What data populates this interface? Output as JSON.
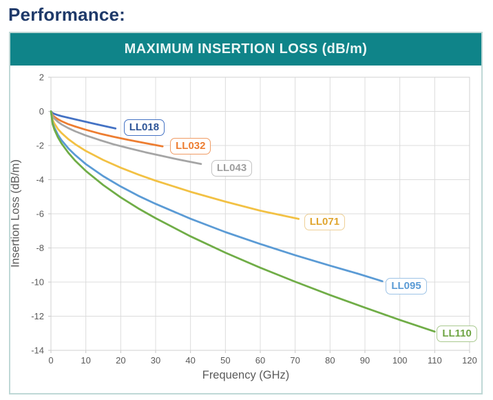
{
  "page": {
    "heading": "Performance:"
  },
  "colors": {
    "heading_text": "#1E3969",
    "header_bar_bg": "#0F8489",
    "header_bar_text": "#EAF6F5",
    "card_border": "#BFD8D6",
    "gridline": "#DCDCDC",
    "plot_border": "#D2D2D2",
    "tick_mark": "#C6C6C6",
    "axis_text": "#595959"
  },
  "chart_data": {
    "type": "line",
    "title": "MAXIMUM INSERTION LOSS (dB/m)",
    "xlabel": "Frequency (GHz)",
    "ylabel": "Insertion Loss (dB/m)",
    "xlim": [
      0,
      120
    ],
    "ylim": [
      -14,
      2
    ],
    "x_ticks": [
      0,
      10,
      20,
      30,
      40,
      50,
      60,
      70,
      80,
      90,
      100,
      110,
      120
    ],
    "y_ticks": [
      2,
      0,
      -2,
      -4,
      -6,
      -8,
      -10,
      -12,
      -14
    ],
    "grid": true,
    "legend_position": "inline-labels-at-line-ends",
    "series": [
      {
        "name": "LL018",
        "color": "#4472C4",
        "label_text_color": "#2E5597",
        "label_border_color": "#4472C4",
        "points": [
          [
            0,
            0
          ],
          [
            0.5,
            -0.1
          ],
          [
            1,
            -0.15
          ],
          [
            2,
            -0.22
          ],
          [
            3,
            -0.28
          ],
          [
            5,
            -0.37
          ],
          [
            7,
            -0.47
          ],
          [
            10,
            -0.61
          ],
          [
            13,
            -0.75
          ],
          [
            16,
            -0.89
          ],
          [
            18.5,
            -1.0
          ]
        ]
      },
      {
        "name": "LL032",
        "color": "#ED7D31",
        "label_text_color": "#ED7D31",
        "label_border_color": "#F09B63",
        "points": [
          [
            0,
            0
          ],
          [
            0.5,
            -0.23
          ],
          [
            1,
            -0.32
          ],
          [
            2,
            -0.46
          ],
          [
            3,
            -0.57
          ],
          [
            5,
            -0.75
          ],
          [
            7,
            -0.89
          ],
          [
            10,
            -1.08
          ],
          [
            14,
            -1.3
          ],
          [
            18,
            -1.49
          ],
          [
            22,
            -1.66
          ],
          [
            27,
            -1.86
          ],
          [
            32,
            -2.05
          ]
        ]
      },
      {
        "name": "LL043",
        "color": "#A5A5A5",
        "label_text_color": "#9E9E9E",
        "label_border_color": "#C2C2C2",
        "points": [
          [
            0,
            0
          ],
          [
            0.5,
            -0.3
          ],
          [
            1,
            -0.43
          ],
          [
            2,
            -0.61
          ],
          [
            3,
            -0.76
          ],
          [
            5,
            -0.98
          ],
          [
            7,
            -1.17
          ],
          [
            10,
            -1.41
          ],
          [
            14,
            -1.68
          ],
          [
            18,
            -1.93
          ],
          [
            22,
            -2.14
          ],
          [
            27,
            -2.39
          ],
          [
            32,
            -2.62
          ],
          [
            37,
            -2.84
          ],
          [
            43,
            -3.08
          ]
        ]
      },
      {
        "name": "LL071",
        "color": "#F2C144",
        "label_text_color": "#E0A52E",
        "label_border_color": "#EED096",
        "points": [
          [
            0,
            0
          ],
          [
            0.5,
            -0.51
          ],
          [
            1,
            -0.72
          ],
          [
            2,
            -1.03
          ],
          [
            3,
            -1.26
          ],
          [
            5,
            -1.63
          ],
          [
            7,
            -1.93
          ],
          [
            10,
            -2.32
          ],
          [
            15,
            -2.85
          ],
          [
            20,
            -3.3
          ],
          [
            25,
            -3.7
          ],
          [
            30,
            -4.06
          ],
          [
            40,
            -4.71
          ],
          [
            50,
            -5.29
          ],
          [
            60,
            -5.82
          ],
          [
            71,
            -6.3
          ]
        ]
      },
      {
        "name": "LL095",
        "color": "#5B9BD5",
        "label_text_color": "#5B9BD5",
        "label_border_color": "#9DC3E6",
        "points": [
          [
            0,
            0
          ],
          [
            0.5,
            -0.68
          ],
          [
            1,
            -0.96
          ],
          [
            2,
            -1.37
          ],
          [
            3,
            -1.68
          ],
          [
            5,
            -2.17
          ],
          [
            7,
            -2.57
          ],
          [
            10,
            -3.09
          ],
          [
            15,
            -3.8
          ],
          [
            20,
            -4.4
          ],
          [
            25,
            -4.94
          ],
          [
            30,
            -5.42
          ],
          [
            40,
            -6.29
          ],
          [
            50,
            -7.07
          ],
          [
            60,
            -7.77
          ],
          [
            70,
            -8.43
          ],
          [
            80,
            -9.04
          ],
          [
            88,
            -9.51
          ],
          [
            95,
            -9.95
          ]
        ]
      },
      {
        "name": "LL110",
        "color": "#70AD47",
        "label_text_color": "#6FA544",
        "label_border_color": "#A9C98F",
        "points": [
          [
            0,
            0
          ],
          [
            0.5,
            -0.75
          ],
          [
            1,
            -1.07
          ],
          [
            2,
            -1.52
          ],
          [
            3,
            -1.87
          ],
          [
            5,
            -2.43
          ],
          [
            7,
            -2.9
          ],
          [
            10,
            -3.49
          ],
          [
            15,
            -4.32
          ],
          [
            20,
            -5.04
          ],
          [
            25,
            -5.68
          ],
          [
            30,
            -6.26
          ],
          [
            40,
            -7.32
          ],
          [
            50,
            -8.28
          ],
          [
            60,
            -9.16
          ],
          [
            70,
            -9.98
          ],
          [
            80,
            -10.76
          ],
          [
            90,
            -11.5
          ],
          [
            100,
            -12.22
          ],
          [
            110,
            -12.9
          ]
        ]
      }
    ]
  }
}
